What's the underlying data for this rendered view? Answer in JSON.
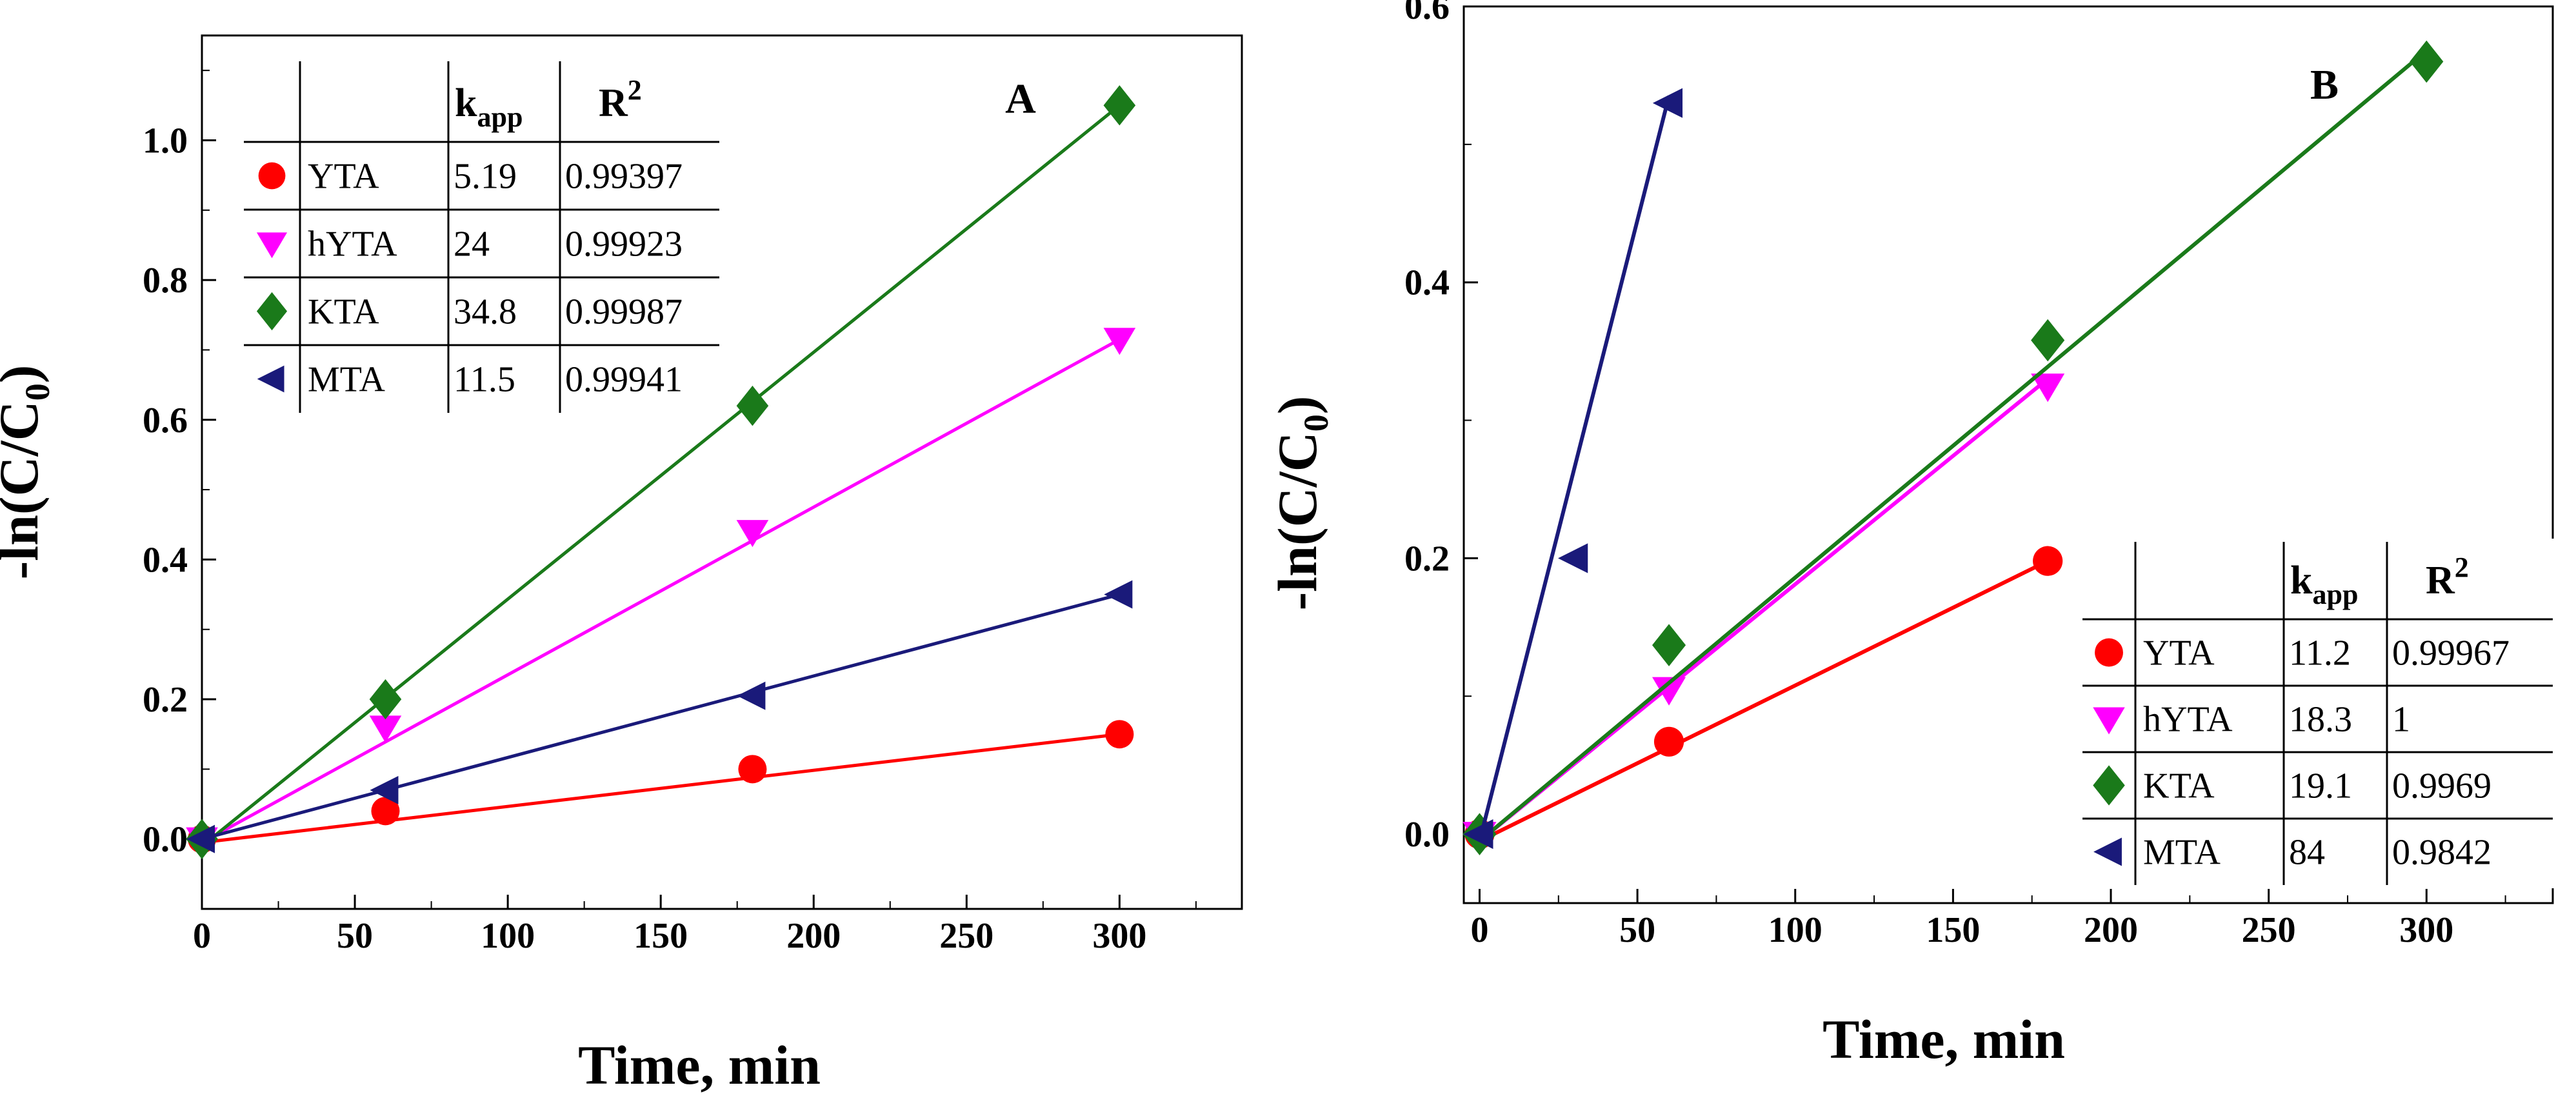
{
  "chart_data": [
    {
      "panel": "A",
      "type": "scatter",
      "xlabel": "Time, min",
      "ylabel": "-ln(C/C",
      "ylabel_sub": "0",
      "ylabel_close": ")",
      "xlim": [
        0,
        340
      ],
      "ylim": [
        -0.1,
        1.15
      ],
      "xticks": [
        0,
        50,
        100,
        150,
        200,
        250,
        300
      ],
      "yticks": [
        0.0,
        0.2,
        0.4,
        0.6,
        0.8,
        1.0
      ],
      "ytick_labels": [
        "0.0",
        "0.2",
        "0.4",
        "0.6",
        "0.8",
        "1.0"
      ],
      "series": [
        {
          "name": "YTA",
          "color": "#ff0000",
          "marker": "circle",
          "x": [
            0,
            60,
            180,
            300
          ],
          "y": [
            0.0,
            0.04,
            0.1,
            0.15
          ],
          "fit": [
            [
              0,
              -0.005
            ],
            [
              300,
              0.15
            ]
          ]
        },
        {
          "name": "hYTA",
          "color": "#ff00ff",
          "marker": "tri-down",
          "x": [
            0,
            60,
            180,
            300
          ],
          "y": [
            0.0,
            0.16,
            0.44,
            0.715
          ],
          "fit": [
            [
              0,
              -0.005
            ],
            [
              300,
              0.715
            ]
          ]
        },
        {
          "name": "KTA",
          "color": "#1a7a1a",
          "marker": "diamond",
          "x": [
            0,
            60,
            180,
            300
          ],
          "y": [
            0.0,
            0.2,
            0.62,
            1.05
          ],
          "fit": [
            [
              0,
              -0.01
            ],
            [
              300,
              1.05
            ]
          ]
        },
        {
          "name": "MTA",
          "color": "#1a1a7a",
          "marker": "tri-left",
          "x": [
            0,
            60,
            180,
            300
          ],
          "y": [
            0.0,
            0.07,
            0.205,
            0.35
          ],
          "fit": [
            [
              0,
              0.0
            ],
            [
              300,
              0.35
            ]
          ]
        }
      ],
      "legend": {
        "position": "top-left",
        "headers": [
          "k",
          "app",
          "R",
          "2"
        ],
        "rows": [
          {
            "name": "YTA",
            "kapp": "5.19",
            "r2": "0.99397"
          },
          {
            "name": "hYTA",
            "kapp": "24",
            "r2": "0.99923"
          },
          {
            "name": "KTA",
            "kapp": "34.8",
            "r2": "0.99987"
          },
          {
            "name": "MTA",
            "kapp": "11.5",
            "r2": "0.99941"
          }
        ]
      }
    },
    {
      "panel": "B",
      "type": "scatter",
      "xlabel": "Time, min",
      "ylabel": "-ln(C/C",
      "ylabel_sub": "0",
      "ylabel_close": ")",
      "xlim": [
        -5,
        340
      ],
      "ylim": [
        -0.05,
        0.6
      ],
      "xticks": [
        0,
        50,
        100,
        150,
        200,
        250,
        300
      ],
      "yticks": [
        0.0,
        0.2,
        0.4,
        0.6
      ],
      "ytick_labels": [
        "0.0",
        "0.2",
        "0.4",
        "0.6"
      ],
      "series": [
        {
          "name": "YTA",
          "color": "#ff0000",
          "marker": "circle",
          "x": [
            0,
            60,
            180
          ],
          "y": [
            0.0,
            0.067,
            0.198
          ],
          "fit": [
            [
              0,
              -0.005
            ],
            [
              180,
              0.198
            ]
          ]
        },
        {
          "name": "hYTA",
          "color": "#ff00ff",
          "marker": "tri-down",
          "x": [
            0,
            60,
            180
          ],
          "y": [
            0.0,
            0.105,
            0.325
          ],
          "fit": [
            [
              0,
              -0.005
            ],
            [
              180,
              0.33
            ]
          ]
        },
        {
          "name": "KTA",
          "color": "#1a7a1a",
          "marker": "diamond",
          "x": [
            0,
            60,
            180,
            300
          ],
          "y": [
            0.0,
            0.137,
            0.358,
            0.56
          ],
          "fit": [
            [
              0,
              -0.005
            ],
            [
              300,
              0.568
            ]
          ]
        },
        {
          "name": "MTA",
          "color": "#1a1a7a",
          "marker": "tri-left",
          "x": [
            0,
            30,
            60
          ],
          "y": [
            0.0,
            0.2,
            0.53
          ],
          "fit": [
            [
              0,
              -0.005
            ],
            [
              60,
              0.535
            ]
          ]
        }
      ],
      "legend": {
        "position": "bottom-right",
        "headers": [
          "k",
          "app",
          "R",
          "2"
        ],
        "rows": [
          {
            "name": "YTA",
            "kapp": "11.2",
            "r2": "0.99967"
          },
          {
            "name": "hYTA",
            "kapp": "18.3",
            "r2": "1"
          },
          {
            "name": "KTA",
            "kapp": "19.1",
            "r2": "0.9969"
          },
          {
            "name": "MTA",
            "kapp": "84",
            "r2": "0.9842"
          }
        ]
      }
    }
  ]
}
